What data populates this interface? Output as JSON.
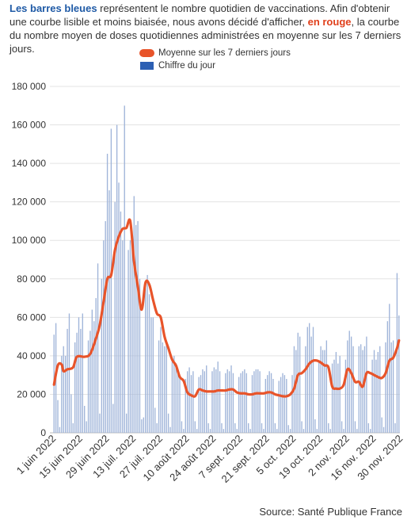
{
  "intro": {
    "part1": "Les barres bleues",
    "part2": " représentent le nombre quotidien de vaccinations. Afin d'obtenir une courbe lisible et moins biaisée, nous avons décidé d'afficher, ",
    "part3": "en rouge",
    "part4": ", la courbe du nombre moyen de doses quotidiennes administrées en moyenne sur les 7 derniers jours."
  },
  "legend": {
    "avg_label": "Moyenne sur les 7 derniers jours",
    "daily_label": "Chiffre du jour"
  },
  "source": "Source: Santé Publique France",
  "colors": {
    "bars": "#9fb4d9",
    "avg_line": "#e8542a",
    "grid": "#e3e3e3"
  },
  "chart_data": {
    "type": "bar",
    "title": "",
    "xlabel": "",
    "ylabel": "",
    "ylim": [
      0,
      180000
    ],
    "y_ticks": [
      "0",
      "20 000",
      "40 000",
      "60 000",
      "80 000",
      "100 000",
      "120 000",
      "140 000",
      "160 000",
      "180 000"
    ],
    "x_tick_labels": [
      "1 juin 2022",
      "15 juin 2022",
      "29 juin 2022",
      "13 juil. 2022",
      "27 juil. 2022",
      "10 août 2022",
      "24 août 2022",
      "7 sept. 2022",
      "21 sept. 2022",
      "5 oct. 2022",
      "19 oct. 2022",
      "2 nov. 2022",
      "16 nov. 2022",
      "30 nov. 2022"
    ],
    "x_tick_days": [
      0,
      14,
      28,
      42,
      56,
      70,
      84,
      98,
      112,
      126,
      140,
      154,
      168,
      182
    ],
    "series": [
      {
        "name": "Chiffre du jour",
        "values": [
          51000,
          57000,
          17000,
          3000,
          40000,
          45000,
          40000,
          54000,
          62000,
          20000,
          5000,
          47000,
          52000,
          60000,
          54000,
          62000,
          14000,
          6000,
          48000,
          53000,
          64000,
          58000,
          70000,
          88000,
          10000,
          80000,
          100000,
          110000,
          145000,
          126000,
          158000,
          15000,
          120000,
          160000,
          130000,
          115000,
          100000,
          170000,
          10000,
          95000,
          100000,
          105000,
          123000,
          108000,
          110000,
          80000,
          7000,
          8000,
          75000,
          82000,
          72000,
          60000,
          60000,
          13000,
          5000,
          48000,
          55000,
          47000,
          45000,
          48000,
          10000,
          3000,
          37000,
          40000,
          36000,
          33000,
          30000,
          6000,
          2000,
          28000,
          32000,
          34000,
          30000,
          32000,
          6000,
          2000,
          29000,
          30000,
          33000,
          32000,
          35000,
          5000,
          2000,
          32000,
          34000,
          33000,
          37000,
          32000,
          5000,
          2000,
          31000,
          33000,
          32000,
          35000,
          31000,
          5000,
          2000,
          29000,
          31000,
          32000,
          33000,
          31000,
          5000,
          2000,
          30000,
          32000,
          33000,
          33000,
          32000,
          5000,
          2000,
          28000,
          30000,
          32000,
          31000,
          28000,
          5000,
          2000,
          27000,
          29000,
          31000,
          30000,
          28000,
          4000,
          2000,
          30000,
          45000,
          43000,
          52000,
          50000,
          6000,
          2000,
          45000,
          55000,
          57000,
          50000,
          55000,
          7000,
          2000,
          37000,
          45000,
          43000,
          43000,
          48000,
          5000,
          2000,
          36000,
          38000,
          42000,
          36000,
          40000,
          6000,
          2000,
          38000,
          48000,
          53000,
          50000,
          45000,
          6000,
          2000,
          45000,
          46000,
          43000,
          45000,
          50000,
          5000,
          2000,
          38000,
          43000,
          38000,
          42000,
          45000,
          8000,
          3000,
          47000,
          58000,
          67000,
          47000,
          48000,
          5000,
          83000,
          61000
        ]
      },
      {
        "name": "Moyenne sur les 7 derniers jours",
        "points": [
          [
            0,
            25000
          ],
          [
            2,
            35000
          ],
          [
            4,
            35500
          ],
          [
            5,
            32000
          ],
          [
            7,
            33000
          ],
          [
            10,
            34000
          ],
          [
            12,
            39500
          ],
          [
            16,
            39500
          ],
          [
            19,
            41000
          ],
          [
            22,
            49000
          ],
          [
            24,
            56000
          ],
          [
            26,
            68000
          ],
          [
            28,
            80000
          ],
          [
            30,
            82000
          ],
          [
            32,
            95000
          ],
          [
            34,
            102000
          ],
          [
            36,
            106000
          ],
          [
            38,
            106500
          ],
          [
            40,
            110000
          ],
          [
            42,
            89000
          ],
          [
            44,
            76000
          ],
          [
            46,
            64000
          ],
          [
            48,
            78000
          ],
          [
            50,
            77000
          ],
          [
            52,
            69000
          ],
          [
            54,
            62000
          ],
          [
            56,
            60000
          ],
          [
            58,
            50000
          ],
          [
            60,
            44000
          ],
          [
            62,
            38000
          ],
          [
            64,
            35000
          ],
          [
            66,
            29000
          ],
          [
            68,
            27000
          ],
          [
            70,
            21000
          ],
          [
            72,
            19500
          ],
          [
            74,
            19000
          ],
          [
            76,
            22500
          ],
          [
            78,
            22000
          ],
          [
            80,
            21500
          ],
          [
            82,
            21500
          ],
          [
            84,
            21500
          ],
          [
            86,
            22000
          ],
          [
            88,
            22000
          ],
          [
            90,
            22000
          ],
          [
            92,
            22500
          ],
          [
            94,
            22500
          ],
          [
            96,
            21000
          ],
          [
            98,
            20500
          ],
          [
            100,
            20500
          ],
          [
            102,
            20000
          ],
          [
            104,
            20000
          ],
          [
            106,
            20500
          ],
          [
            108,
            20500
          ],
          [
            110,
            20500
          ],
          [
            112,
            21000
          ],
          [
            114,
            21000
          ],
          [
            116,
            20000
          ],
          [
            118,
            19500
          ],
          [
            120,
            19000
          ],
          [
            122,
            19000
          ],
          [
            124,
            20000
          ],
          [
            126,
            23000
          ],
          [
            128,
            30000
          ],
          [
            130,
            31000
          ],
          [
            132,
            33000
          ],
          [
            134,
            36000
          ],
          [
            136,
            37500
          ],
          [
            138,
            37500
          ],
          [
            140,
            36500
          ],
          [
            142,
            35000
          ],
          [
            144,
            34000
          ],
          [
            146,
            24000
          ],
          [
            148,
            23000
          ],
          [
            150,
            23000
          ],
          [
            152,
            25000
          ],
          [
            154,
            33000
          ],
          [
            156,
            31000
          ],
          [
            158,
            26500
          ],
          [
            160,
            26500
          ],
          [
            162,
            24000
          ],
          [
            164,
            31000
          ],
          [
            166,
            31000
          ],
          [
            168,
            30000
          ],
          [
            170,
            29000
          ],
          [
            172,
            28500
          ],
          [
            174,
            31000
          ],
          [
            176,
            37500
          ],
          [
            178,
            39000
          ],
          [
            180,
            44000
          ],
          [
            181,
            48000
          ]
        ]
      }
    ],
    "grid": true,
    "legend_position": "top"
  }
}
